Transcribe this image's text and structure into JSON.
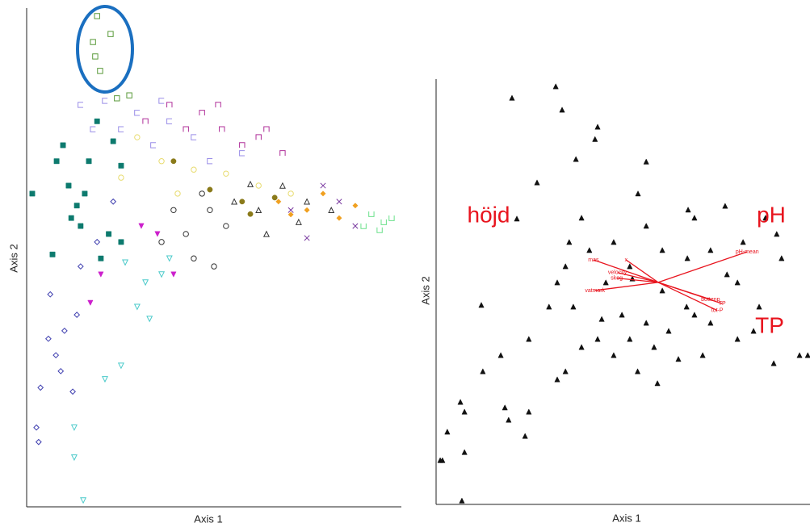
{
  "chart_data": [
    {
      "type": "scatter",
      "x_label": "Axis 1",
      "y_label": "Axis 2",
      "xlim": [
        0,
        100
      ],
      "ylim": [
        0,
        100
      ],
      "series": [
        {
          "color": "#5a9a3a",
          "marker": "square-open",
          "x": [
            18.8,
            22.4,
            17.7,
            18.3,
            19.6,
            24.1,
            27.4
          ],
          "y": [
            98.4,
            94.8,
            93.2,
            90.3,
            87.4,
            81.9,
            82.5
          ]
        },
        {
          "color": "#0d7a6e",
          "marker": "square",
          "x": [
            1.5,
            9.7,
            8,
            11.2,
            6.9,
            13.4,
            16.6,
            18.8,
            23.1,
            25.2,
            19.8,
            14.4,
            11.9,
            15.5,
            21.9,
            25.2
          ],
          "y": [
            62.8,
            72.5,
            69.3,
            64.4,
            50.6,
            60.4,
            69.3,
            77.3,
            73.3,
            68.4,
            49.8,
            56.3,
            57.9,
            62.8,
            54.7,
            53.1
          ]
        },
        {
          "color": "#9a8ee8",
          "marker": "bracket",
          "x": [
            14.4,
            20.9,
            29.5,
            38.1,
            33.8,
            44.6,
            17.7,
            25.2,
            48.9,
            57.5,
            36
          ],
          "y": [
            80.6,
            81.4,
            79,
            77.3,
            72.5,
            74.1,
            75.7,
            75.7,
            69.3,
            70.9,
            81.4
          ]
        },
        {
          "color": "#b0309a",
          "marker": "cap",
          "x": [
            38.1,
            46.8,
            52.1,
            61.9,
            57.5,
            31.7,
            42.5,
            68.3,
            51.1,
            64
          ],
          "y": [
            80.6,
            79,
            75.7,
            74.1,
            72.5,
            77.3,
            75.7,
            70.9,
            80.6,
            75.7
          ]
        },
        {
          "color": "#e8dc70",
          "marker": "circle-open",
          "x": [
            36,
            44.6,
            29.5,
            53.2,
            61.9,
            70.5,
            40.3,
            25.2
          ],
          "y": [
            69.3,
            67.6,
            74.1,
            66.8,
            64.4,
            62.8,
            62.8,
            66
          ]
        },
        {
          "color": "#333333",
          "marker": "circle-open",
          "x": [
            42.5,
            48.9,
            36,
            44.6,
            50,
            53.2,
            39.2,
            46.8
          ],
          "y": [
            54.7,
            59.5,
            53.1,
            49.8,
            48.2,
            56.3,
            59.5,
            62.8
          ]
        },
        {
          "color": "#333333",
          "marker": "triangle-open",
          "x": [
            55.4,
            61.9,
            68.3,
            64,
            74.8,
            81.3,
            59.7,
            72.6
          ],
          "y": [
            61.2,
            59.5,
            64.4,
            54.7,
            61.2,
            59.5,
            64.7,
            57.1
          ]
        },
        {
          "color": "#f0a020",
          "marker": "diamond",
          "x": [
            74.8,
            79.1,
            83.4,
            70.5,
            87.7,
            67.2
          ],
          "y": [
            59.5,
            62.8,
            57.9,
            58.6,
            60.4,
            61.2
          ]
        },
        {
          "color": "#8a7a1a",
          "marker": "circle",
          "x": [
            39.2,
            48.9,
            59.7,
            66.2,
            57.5
          ],
          "y": [
            69.3,
            63.6,
            58.7,
            62,
            61.2
          ]
        },
        {
          "color": "#7a3aa0",
          "marker": "x",
          "x": [
            70.5,
            83.4,
            87.7,
            79.1,
            74.8
          ],
          "y": [
            59.5,
            61.2,
            56.3,
            64.4,
            53.9
          ]
        },
        {
          "color": "#6ae08a",
          "marker": "cup",
          "x": [
            92,
            95.3,
            97.4,
            89.9,
            94.2
          ],
          "y": [
            58.7,
            57.1,
            57.9,
            56.3,
            55.5
          ]
        },
        {
          "color": "#4acaca",
          "marker": "triangle-down-open",
          "x": [
            26.3,
            31.7,
            36,
            29.5,
            32.8,
            20.9,
            25.2,
            12.7,
            12.7,
            15.1,
            38.1
          ],
          "y": [
            49,
            45,
            46.6,
            40.1,
            37.7,
            25.6,
            28.3,
            15.9,
            9.9,
            1.3,
            49.8
          ]
        },
        {
          "color": "#cc20cc",
          "marker": "triangle-down",
          "x": [
            19.8,
            34.9,
            39.2,
            17,
            30.6
          ],
          "y": [
            46.6,
            54.7,
            46.6,
            40.9,
            56.3
          ]
        },
        {
          "color": "#4040b0",
          "marker": "diamond-open",
          "x": [
            6.3,
            3.7,
            2.6,
            3.2,
            7.8,
            10.1,
            13.4,
            14.4,
            5.8,
            12.3,
            9.1,
            18.8,
            23.1
          ],
          "y": [
            42.6,
            23.9,
            15.9,
            13,
            30.4,
            35.3,
            38.5,
            48.2,
            33.7,
            23.1,
            27.2,
            53.1,
            61.2
          ]
        }
      ]
    },
    {
      "type": "scatter",
      "x_label": "Axis 1",
      "y_label": "Axis 2",
      "xlim": [
        0,
        100
      ],
      "ylim": [
        0,
        100
      ],
      "series": [
        {
          "color": "#111111",
          "marker": "triangle",
          "x": [
            32,
            20.3,
            33.7,
            43.2,
            42.5,
            37.4,
            27,
            21.6,
            54,
            56.2,
            67.4,
            77.3,
            88.1,
            91.1,
            92.4,
            97.2,
            99.4,
            90.3,
            80.6,
            73.4,
            67,
            60.5,
            56.2,
            51.8,
            47.5,
            64.8,
            59.2,
            53.9,
            43.2,
            36.7,
            32.4,
            35.6,
            41,
            47.5,
            51.8,
            60.5,
            67.2,
            73.4,
            77.8,
            82.1,
            86.4,
            69.1,
            62.2,
            49.7,
            45.4,
            30.2,
            24.8,
            17.3,
            12.1,
            12.5,
            6.5,
            7.6,
            3,
            1.1,
            1.7,
            7.6,
            6.9,
            18.4,
            24.8,
            23.8,
            19.4,
            32.4,
            34.6,
            38.9,
            44.3,
            56.2,
            69.1,
            80.6,
            84.9,
            71.3,
            58.3,
            38.9,
            34.6,
            52.5
          ],
          "y": [
            98.3,
            95.6,
            92.8,
            88.8,
            85.9,
            81.2,
            75.7,
            67.2,
            73.1,
            80.6,
            69.3,
            70.2,
            67.4,
            63.6,
            57.9,
            35.1,
            35.1,
            33.2,
            38.9,
            42.7,
            46.5,
            50.3,
            42.7,
            38.9,
            35.1,
            34.2,
            28.5,
            31.3,
            38.9,
            46.5,
            52.2,
            61.7,
            59.8,
            61.7,
            56,
            59.8,
            57.9,
            59.8,
            54.1,
            61.7,
            46.5,
            44.6,
            40.8,
            44.6,
            52.2,
            46.5,
            38.9,
            35.1,
            46.9,
            31.3,
            24.1,
            21.8,
            17.1,
            10.4,
            10.4,
            12.3,
            0.9,
            22.8,
            21.8,
            16.1,
            19.9,
            29.4,
            31.3,
            37,
            43.6,
            65.5,
            67.4,
            52.2,
            40.8,
            35.1,
            37,
            67.4,
            56,
            53.1
          ]
        }
      ],
      "vector_origin": {
        "x": 59.4,
        "y": 52.2
      },
      "vectors": [
        {
          "label": "mas",
          "x": 42.1,
          "y": 57.5
        },
        {
          "label": "x",
          "x": 50.8,
          "y": 57.5
        },
        {
          "label": "velocity",
          "x": 48.5,
          "y": 54.5
        },
        {
          "label": "skog",
          "x": 48.3,
          "y": 53.2
        },
        {
          "label": "vatmark",
          "x": 42.5,
          "y": 50.3
        },
        {
          "label": "pH-mean",
          "x": 83.2,
          "y": 59.4
        },
        {
          "label": "bottenp",
          "x": 73.4,
          "y": 48.2
        },
        {
          "label": "TP",
          "x": 76.5,
          "y": 47.2
        },
        {
          "label": "tot-P",
          "x": 75.2,
          "y": 45.6
        }
      ],
      "annotations": [
        "höjd",
        "pH",
        "TP"
      ]
    }
  ]
}
